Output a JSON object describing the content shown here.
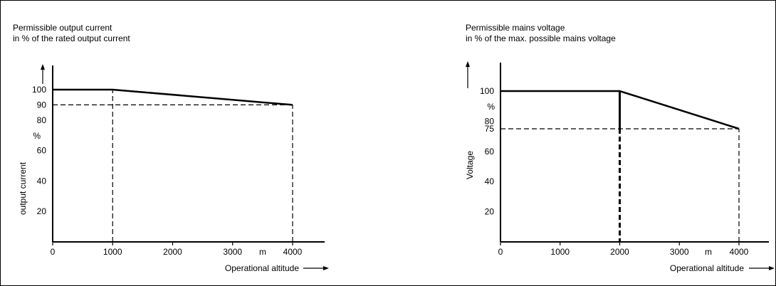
{
  "chart_data": [
    {
      "type": "line",
      "title_lines": [
        "Permissible output current",
        "in % of the rated output current"
      ],
      "xlabel": "Operational altitude",
      "ylabel": "output current",
      "y_unit": "%",
      "x_unit": "m",
      "xlim": [
        0,
        4000
      ],
      "ylim": [
        0,
        100
      ],
      "x_ticks": [
        0,
        1000,
        2000,
        3000,
        4000
      ],
      "x_tick_labels": [
        "0",
        "1000",
        "2000",
        "3000",
        "4000"
      ],
      "y_ticks": [
        20,
        40,
        60,
        80,
        90,
        100
      ],
      "y_tick_labels": [
        "20",
        "40",
        "60",
        "80",
        "90",
        "100"
      ],
      "series": [
        {
          "style": "solid",
          "x": [
            0,
            1000,
            4000
          ],
          "y": [
            100,
            100,
            90
          ]
        }
      ],
      "reference_lines": [
        {
          "style": "dashed",
          "x": [
            0,
            4000
          ],
          "y": [
            90,
            90
          ]
        },
        {
          "style": "dashed",
          "x": [
            1000,
            1000
          ],
          "y": [
            0,
            100
          ]
        },
        {
          "style": "dashed",
          "x": [
            4000,
            4000
          ],
          "y": [
            0,
            90
          ]
        }
      ],
      "grid": false
    },
    {
      "type": "line",
      "title_lines": [
        "Permissible mains voltage",
        "in % of the max. possible mains voltage"
      ],
      "xlabel": "Operational altitude",
      "ylabel": "Voltage",
      "y_unit": "%",
      "x_unit": "m",
      "xlim": [
        0,
        4000
      ],
      "ylim": [
        0,
        100
      ],
      "x_ticks": [
        0,
        1000,
        2000,
        3000,
        4000
      ],
      "x_tick_labels": [
        "0",
        "1000",
        "2000",
        "3000",
        "4000"
      ],
      "y_ticks": [
        20,
        40,
        60,
        75,
        80,
        100
      ],
      "y_tick_labels": [
        "20",
        "40",
        "60",
        "75",
        "80",
        "100"
      ],
      "series": [
        {
          "style": "solid",
          "x": [
            0,
            2000,
            4000
          ],
          "y": [
            100,
            100,
            75
          ]
        }
      ],
      "reference_lines": [
        {
          "style": "thick-solid",
          "x": [
            2000,
            2000
          ],
          "y": [
            100,
            75
          ]
        },
        {
          "style": "thick-dashed",
          "x": [
            2000,
            2000
          ],
          "y": [
            75,
            0
          ]
        },
        {
          "style": "dashed",
          "x": [
            0,
            4000
          ],
          "y": [
            75,
            75
          ]
        },
        {
          "style": "dashed",
          "x": [
            4000,
            4000
          ],
          "y": [
            0,
            75
          ]
        }
      ],
      "grid": false
    }
  ]
}
